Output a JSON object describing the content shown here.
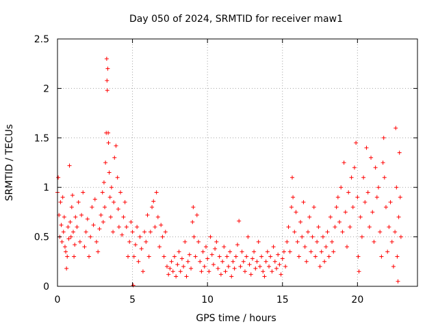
{
  "chart_data": {
    "type": "scatter",
    "title": "Day 050 of 2024, SRMTID for receiver maw1",
    "xlabel": "GPS time / hours",
    "ylabel": "SRMTID / TECUs",
    "xlim": [
      0,
      24
    ],
    "ylim": [
      0,
      2.5
    ],
    "x_ticks": [
      0,
      5,
      10,
      15,
      20
    ],
    "x_tick_labels": [
      "0",
      "5",
      "10",
      "15",
      "20"
    ],
    "y_ticks": [
      0,
      0.5,
      1,
      1.5,
      2,
      2.5
    ],
    "y_tick_labels": [
      "0",
      "0.5",
      "1",
      "1.5",
      "2",
      "2.5"
    ],
    "grid": true,
    "marker": "+",
    "color": "#ff0000",
    "series": [
      {
        "name": "SRMTID",
        "points": [
          [
            0.0,
            0.95
          ],
          [
            0.05,
            1.1
          ],
          [
            0.1,
            0.72
          ],
          [
            0.15,
            0.5
          ],
          [
            0.2,
            0.85
          ],
          [
            0.25,
            0.62
          ],
          [
            0.3,
            0.45
          ],
          [
            0.35,
            0.9
          ],
          [
            0.4,
            0.55
          ],
          [
            0.45,
            0.7
          ],
          [
            0.5,
            0.4
          ],
          [
            0.55,
            0.35
          ],
          [
            0.6,
            0.18
          ],
          [
            0.65,
            0.3
          ],
          [
            0.7,
            0.6
          ],
          [
            0.75,
            0.48
          ],
          [
            0.8,
            1.22
          ],
          [
            0.85,
            0.65
          ],
          [
            0.9,
            0.5
          ],
          [
            0.95,
            0.8
          ],
          [
            1.0,
            0.92
          ],
          [
            1.05,
            0.55
          ],
          [
            1.1,
            0.3
          ],
          [
            1.15,
            0.42
          ],
          [
            1.2,
            0.7
          ],
          [
            1.3,
            0.6
          ],
          [
            1.4,
            0.85
          ],
          [
            1.5,
            0.45
          ],
          [
            1.6,
            0.72
          ],
          [
            1.7,
            0.95
          ],
          [
            1.8,
            0.4
          ],
          [
            1.9,
            0.55
          ],
          [
            2.0,
            0.68
          ],
          [
            2.1,
            0.3
          ],
          [
            2.2,
            0.5
          ],
          [
            2.3,
            0.8
          ],
          [
            2.4,
            0.62
          ],
          [
            2.5,
            0.88
          ],
          [
            2.6,
            0.45
          ],
          [
            2.7,
            0.35
          ],
          [
            2.8,
            0.58
          ],
          [
            2.9,
            0.72
          ],
          [
            3.0,
            0.95
          ],
          [
            3.05,
            0.65
          ],
          [
            3.1,
            1.05
          ],
          [
            3.15,
            0.8
          ],
          [
            3.2,
            1.25
          ],
          [
            3.25,
            1.55
          ],
          [
            3.28,
            2.3
          ],
          [
            3.3,
            2.08
          ],
          [
            3.32,
            1.98
          ],
          [
            3.35,
            2.2
          ],
          [
            3.38,
            1.55
          ],
          [
            3.4,
            1.45
          ],
          [
            3.45,
            1.15
          ],
          [
            3.5,
            0.9
          ],
          [
            3.55,
            0.7
          ],
          [
            3.6,
            1.0
          ],
          [
            3.7,
            0.55
          ],
          [
            3.75,
            0.85
          ],
          [
            3.8,
            1.3
          ],
          [
            3.9,
            1.42
          ],
          [
            4.0,
            1.1
          ],
          [
            4.05,
            0.78
          ],
          [
            4.1,
            0.6
          ],
          [
            4.2,
            0.95
          ],
          [
            4.3,
            0.52
          ],
          [
            4.4,
            0.7
          ],
          [
            4.5,
            0.85
          ],
          [
            4.6,
            0.6
          ],
          [
            4.7,
            0.3
          ],
          [
            4.8,
            0.45
          ],
          [
            4.9,
            0.65
          ],
          [
            5.0,
            0.55
          ],
          [
            5.05,
            0.01
          ],
          [
            5.1,
            0.3
          ],
          [
            5.2,
            0.42
          ],
          [
            5.3,
            0.6
          ],
          [
            5.4,
            0.25
          ],
          [
            5.5,
            0.5
          ],
          [
            5.6,
            0.38
          ],
          [
            5.7,
            0.15
          ],
          [
            5.8,
            0.55
          ],
          [
            5.9,
            0.45
          ],
          [
            6.0,
            0.72
          ],
          [
            6.1,
            0.3
          ],
          [
            6.2,
            0.55
          ],
          [
            6.3,
            0.8
          ],
          [
            6.4,
            0.86
          ],
          [
            6.5,
            0.6
          ],
          [
            6.6,
            0.95
          ],
          [
            6.7,
            0.7
          ],
          [
            6.8,
            0.4
          ],
          [
            6.9,
            0.62
          ],
          [
            7.0,
            0.5
          ],
          [
            7.1,
            0.3
          ],
          [
            7.2,
            0.55
          ],
          [
            7.3,
            0.2
          ],
          [
            7.4,
            0.12
          ],
          [
            7.5,
            0.18
          ],
          [
            7.6,
            0.25
          ],
          [
            7.7,
            0.15
          ],
          [
            7.8,
            0.3
          ],
          [
            7.9,
            0.1
          ],
          [
            8.0,
            0.22
          ],
          [
            8.1,
            0.35
          ],
          [
            8.2,
            0.15
          ],
          [
            8.3,
            0.28
          ],
          [
            8.4,
            0.2
          ],
          [
            8.5,
            0.45
          ],
          [
            8.6,
            0.1
          ],
          [
            8.7,
            0.25
          ],
          [
            8.8,
            0.32
          ],
          [
            8.9,
            0.18
          ],
          [
            9.0,
            0.65
          ],
          [
            9.05,
            0.8
          ],
          [
            9.1,
            0.5
          ],
          [
            9.2,
            0.3
          ],
          [
            9.3,
            0.72
          ],
          [
            9.4,
            0.45
          ],
          [
            9.5,
            0.25
          ],
          [
            9.6,
            0.15
          ],
          [
            9.7,
            0.35
          ],
          [
            9.8,
            0.2
          ],
          [
            9.9,
            0.4
          ],
          [
            10.0,
            0.28
          ],
          [
            10.1,
            0.15
          ],
          [
            10.2,
            0.5
          ],
          [
            10.3,
            0.32
          ],
          [
            10.4,
            0.22
          ],
          [
            10.5,
            0.38
          ],
          [
            10.6,
            0.45
          ],
          [
            10.7,
            0.18
          ],
          [
            10.8,
            0.3
          ],
          [
            10.9,
            0.12
          ],
          [
            11.0,
            0.25
          ],
          [
            11.1,
            0.4
          ],
          [
            11.2,
            0.15
          ],
          [
            11.3,
            0.3
          ],
          [
            11.4,
            0.2
          ],
          [
            11.5,
            0.35
          ],
          [
            11.6,
            0.1
          ],
          [
            11.7,
            0.25
          ],
          [
            11.8,
            0.18
          ],
          [
            11.9,
            0.3
          ],
          [
            12.0,
            0.42
          ],
          [
            12.1,
            0.66
          ],
          [
            12.2,
            0.2
          ],
          [
            12.3,
            0.35
          ],
          [
            12.4,
            0.25
          ],
          [
            12.5,
            0.15
          ],
          [
            12.6,
            0.3
          ],
          [
            12.7,
            0.5
          ],
          [
            12.8,
            0.22
          ],
          [
            12.9,
            0.12
          ],
          [
            13.0,
            0.28
          ],
          [
            13.1,
            0.35
          ],
          [
            13.2,
            0.18
          ],
          [
            13.3,
            0.25
          ],
          [
            13.4,
            0.45
          ],
          [
            13.5,
            0.2
          ],
          [
            13.6,
            0.3
          ],
          [
            13.7,
            0.15
          ],
          [
            13.8,
            0.1
          ],
          [
            13.9,
            0.25
          ],
          [
            14.0,
            0.35
          ],
          [
            14.1,
            0.2
          ],
          [
            14.2,
            0.3
          ],
          [
            14.3,
            0.15
          ],
          [
            14.4,
            0.4
          ],
          [
            14.5,
            0.25
          ],
          [
            14.6,
            0.18
          ],
          [
            14.7,
            0.32
          ],
          [
            14.8,
            0.22
          ],
          [
            14.9,
            0.12
          ],
          [
            15.0,
            0.28
          ],
          [
            15.1,
            0.35
          ],
          [
            15.2,
            0.2
          ],
          [
            15.3,
            0.45
          ],
          [
            15.4,
            0.6
          ],
          [
            15.5,
            0.35
          ],
          [
            15.6,
            0.8
          ],
          [
            15.65,
            1.1
          ],
          [
            15.7,
            0.9
          ],
          [
            15.8,
            0.55
          ],
          [
            15.9,
            0.75
          ],
          [
            16.0,
            0.45
          ],
          [
            16.1,
            0.3
          ],
          [
            16.2,
            0.65
          ],
          [
            16.3,
            0.5
          ],
          [
            16.4,
            0.85
          ],
          [
            16.5,
            0.4
          ],
          [
            16.6,
            0.25
          ],
          [
            16.7,
            0.55
          ],
          [
            16.8,
            0.7
          ],
          [
            16.9,
            0.35
          ],
          [
            17.0,
            0.5
          ],
          [
            17.1,
            0.8
          ],
          [
            17.2,
            0.3
          ],
          [
            17.3,
            0.45
          ],
          [
            17.4,
            0.6
          ],
          [
            17.5,
            0.2
          ],
          [
            17.6,
            0.35
          ],
          [
            17.7,
            0.5
          ],
          [
            17.8,
            0.25
          ],
          [
            17.9,
            0.4
          ],
          [
            18.0,
            0.55
          ],
          [
            18.1,
            0.3
          ],
          [
            18.2,
            0.7
          ],
          [
            18.3,
            0.45
          ],
          [
            18.4,
            0.35
          ],
          [
            18.5,
            0.6
          ],
          [
            18.6,
            0.8
          ],
          [
            18.7,
            0.9
          ],
          [
            18.8,
            0.65
          ],
          [
            18.9,
            1.0
          ],
          [
            19.0,
            0.55
          ],
          [
            19.1,
            1.25
          ],
          [
            19.2,
            0.75
          ],
          [
            19.3,
            0.4
          ],
          [
            19.4,
            0.95
          ],
          [
            19.5,
            0.6
          ],
          [
            19.6,
            1.1
          ],
          [
            19.7,
            0.8
          ],
          [
            19.8,
            1.2
          ],
          [
            19.9,
            1.45
          ],
          [
            20.0,
            0.9
          ],
          [
            20.05,
            0.3
          ],
          [
            20.1,
            0.15
          ],
          [
            20.2,
            0.7
          ],
          [
            20.3,
            0.5
          ],
          [
            20.4,
            1.1
          ],
          [
            20.5,
            0.85
          ],
          [
            20.6,
            1.4
          ],
          [
            20.7,
            0.95
          ],
          [
            20.8,
            0.6
          ],
          [
            20.9,
            1.3
          ],
          [
            21.0,
            0.75
          ],
          [
            21.1,
            0.45
          ],
          [
            21.2,
            1.2
          ],
          [
            21.3,
            0.9
          ],
          [
            21.4,
            1.0
          ],
          [
            21.5,
            0.55
          ],
          [
            21.6,
            0.3
          ],
          [
            21.7,
            1.25
          ],
          [
            21.75,
            1.5
          ],
          [
            21.8,
            1.1
          ],
          [
            21.9,
            0.8
          ],
          [
            22.0,
            0.35
          ],
          [
            22.1,
            0.6
          ],
          [
            22.2,
            0.85
          ],
          [
            22.3,
            0.45
          ],
          [
            22.4,
            0.2
          ],
          [
            22.5,
            0.55
          ],
          [
            22.55,
            1.6
          ],
          [
            22.6,
            1.0
          ],
          [
            22.65,
            0.3
          ],
          [
            22.7,
            0.05
          ],
          [
            22.75,
            0.7
          ],
          [
            22.8,
            1.35
          ],
          [
            22.85,
            0.9
          ],
          [
            22.9,
            0.5
          ]
        ]
      }
    ]
  }
}
